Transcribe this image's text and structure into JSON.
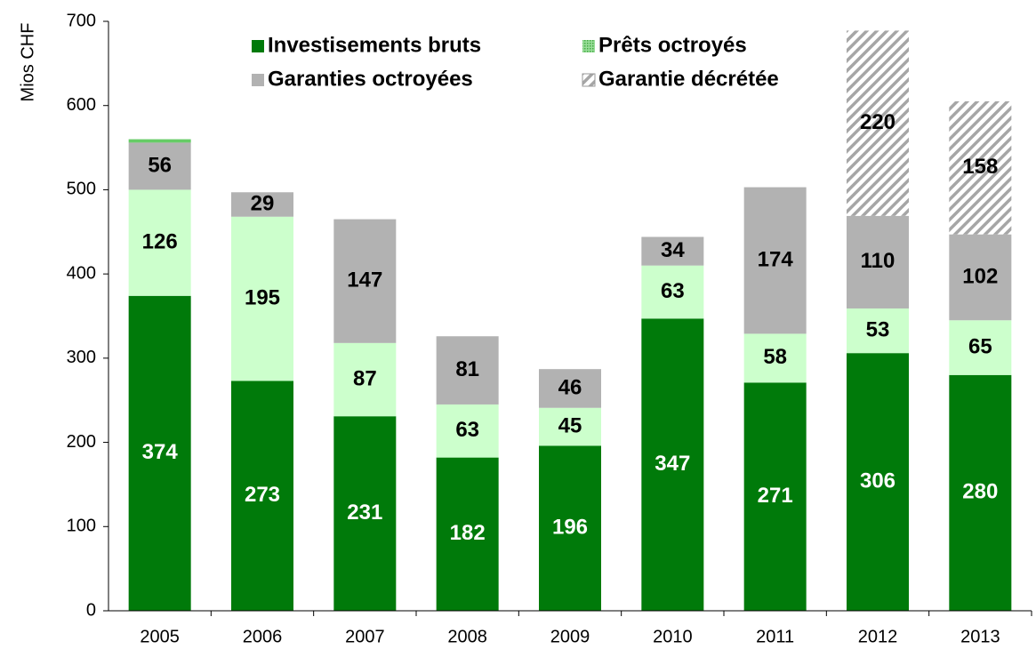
{
  "chart_data": {
    "type": "stacked-bar",
    "y_label": "Mios CHF",
    "categories": [
      "2005",
      "2006",
      "2007",
      "2008",
      "2009",
      "2010",
      "2011",
      "2012",
      "2013"
    ],
    "series": [
      {
        "name": "Investisements bruts",
        "color": "#007a0a",
        "label_color": "#ffffff",
        "values": [
          374,
          273,
          231,
          182,
          196,
          347,
          271,
          306,
          280
        ]
      },
      {
        "name": null,
        "color": "#ccffcc",
        "label_color": "#000000",
        "values": [
          126,
          195,
          87,
          63,
          45,
          63,
          58,
          53,
          65
        ]
      },
      {
        "name": "Garanties octroyées",
        "color": "#b2b2b2",
        "label_color": "#000000",
        "values": [
          56,
          29,
          147,
          81,
          46,
          34,
          174,
          110,
          102
        ]
      },
      {
        "name": "Prêts octroyés",
        "color": "#66cc66",
        "label_color": "#000000",
        "values": [
          4,
          null,
          null,
          null,
          null,
          null,
          null,
          null,
          null
        ],
        "no_labels": true
      },
      {
        "name": "Garantie décrétée",
        "color": "url(#hatch)",
        "label_color": "#000000",
        "values": [
          null,
          null,
          null,
          null,
          null,
          null,
          null,
          220,
          158
        ]
      }
    ],
    "ylim": [
      0,
      700
    ],
    "yticks": [
      0,
      100,
      200,
      300,
      400,
      500,
      600,
      700
    ],
    "grid": false
  }
}
